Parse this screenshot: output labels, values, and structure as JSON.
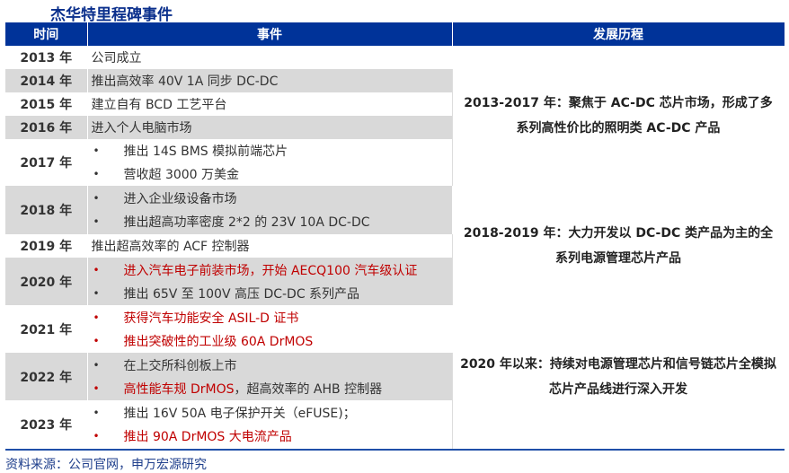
{
  "title": "杰华特里程碑事件",
  "headers": [
    "时间",
    "事件",
    "发展历程"
  ],
  "rows": [
    {
      "year": "2013 年",
      "items": [
        {
          "text": "公司成立",
          "red": false
        }
      ],
      "bullets": false
    },
    {
      "year": "2014 年",
      "items": [
        {
          "text": "推出高效率 40V 1A 同步 DC-DC",
          "red": false
        }
      ],
      "bullets": false
    },
    {
      "year": "2015 年",
      "items": [
        {
          "text": "建立自有 BCD 工艺平台",
          "red": false
        }
      ],
      "bullets": false
    },
    {
      "year": "2016 年",
      "items": [
        {
          "text": "进入个人电脑市场",
          "red": false
        }
      ],
      "bullets": false
    },
    {
      "year": "2017 年",
      "items": [
        {
          "text": "推出 14S BMS 模拟前端芯片",
          "red": false
        },
        {
          "text": "营收超 3000 万美金",
          "red": false
        }
      ],
      "bullets": true
    },
    {
      "year": "2018 年",
      "items": [
        {
          "text": "进入企业级设备市场",
          "red": false
        },
        {
          "text": "推出超高功率密度 2*2 的 23V 10A DC-DC",
          "red": false
        }
      ],
      "bullets": true
    },
    {
      "year": "2019 年",
      "items": [
        {
          "text": "推出超高效率的 ACF 控制器",
          "red": false
        }
      ],
      "bullets": false
    },
    {
      "year": "2020 年",
      "items": [
        {
          "text": "进入汽车电子前装市场，开始 AECQ100 汽车级认证",
          "red": true
        },
        {
          "text": "推出 65V 至 100V 高压 DC-DC 系列产品",
          "red": false
        }
      ],
      "bullets": true
    },
    {
      "year": "2021 年",
      "items": [
        {
          "text": "获得汽车功能安全 ASIL-D 证书",
          "red": true
        },
        {
          "text": "推出突破性的工业级 60A DrMOS",
          "red": true
        }
      ],
      "bullets": true
    },
    {
      "year": "2022 年",
      "items": [
        {
          "text": "在上交所科创板上市",
          "red": false
        },
        {
          "parts": [
            {
              "text": "高性能车规 DrMOS",
              "red": true
            },
            {
              "text": "，超高效率的 AHB 控制器",
              "red": false
            }
          ]
        }
      ],
      "bullets": true
    },
    {
      "year": "2023 年",
      "items": [
        {
          "text": "推出  16V 50A  电子保护开关（eFUSE)；",
          "red": false
        },
        {
          "text": "推出 90A DrMOS  大电流产品",
          "red": true
        }
      ],
      "bullets": true
    }
  ],
  "history": [
    "2013-2017 年：聚焦于 AC-DC 芯片市场，形成了多系列高性价比的照明类 AC-DC 产品",
    "2018-2019  年：大力开发以 DC-DC 类产品为主的全系列电源管理芯片产品",
    "2020 年以来：持续对电源管理芯片和信号链芯片全模拟芯片产品线进行深入开发"
  ],
  "source": "资料来源：公司官网，申万宏源研究",
  "colors": {
    "header": "#003399",
    "red": "#c00000",
    "gray_row": "#d9d9d9"
  }
}
